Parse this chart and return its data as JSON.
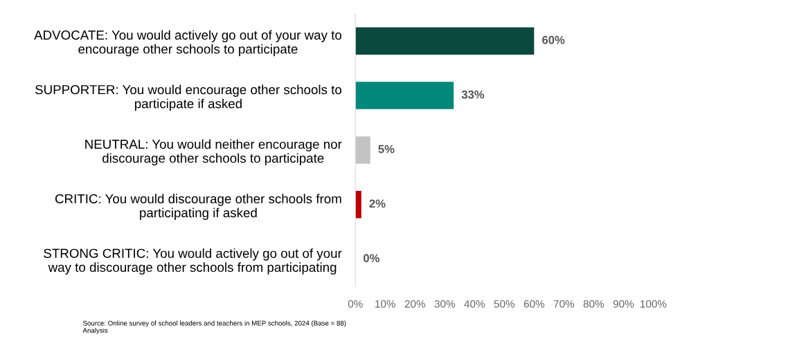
{
  "chart_data": {
    "type": "bar",
    "orientation": "horizontal",
    "categories": [
      "ADVOCATE: You would actively go out of your way to\nencourage other schools to participate",
      "SUPPORTER: You would encourage other schools to\nparticipate if asked",
      "NEUTRAL: You would neither encourage nor\ndiscourage other schools to participate",
      "CRITIC: You would discourage other schools from\nparticipating if asked",
      "STRONG CRITIC: You would actively go out of your\nway to discourage other schools from participating"
    ],
    "values": [
      60,
      33,
      5,
      2,
      0
    ],
    "colors": [
      "#0b4a3f",
      "#00897b",
      "#c3c3c3",
      "#c00000",
      "#c3c3c3"
    ],
    "value_labels": [
      "60%",
      "33%",
      "5%",
      "2%",
      "0%"
    ],
    "xlim": [
      0,
      100
    ],
    "xticks": [
      {
        "value": 0,
        "label": "0%"
      },
      {
        "value": 10,
        "label": "10%"
      },
      {
        "value": 20,
        "label": "20%"
      },
      {
        "value": 30,
        "label": "30%"
      },
      {
        "value": 40,
        "label": "40%"
      },
      {
        "value": 50,
        "label": "50%"
      },
      {
        "value": 60,
        "label": "60%"
      },
      {
        "value": 70,
        "label": "70%"
      },
      {
        "value": 80,
        "label": "80%"
      },
      {
        "value": 90,
        "label": "90%"
      },
      {
        "value": 100,
        "label": "100%"
      }
    ],
    "grid": false,
    "annotations": [
      "Source: Online survey of school leaders and teachers in MEP schools, 2024 (Base = 88)\nAnalysis"
    ]
  }
}
